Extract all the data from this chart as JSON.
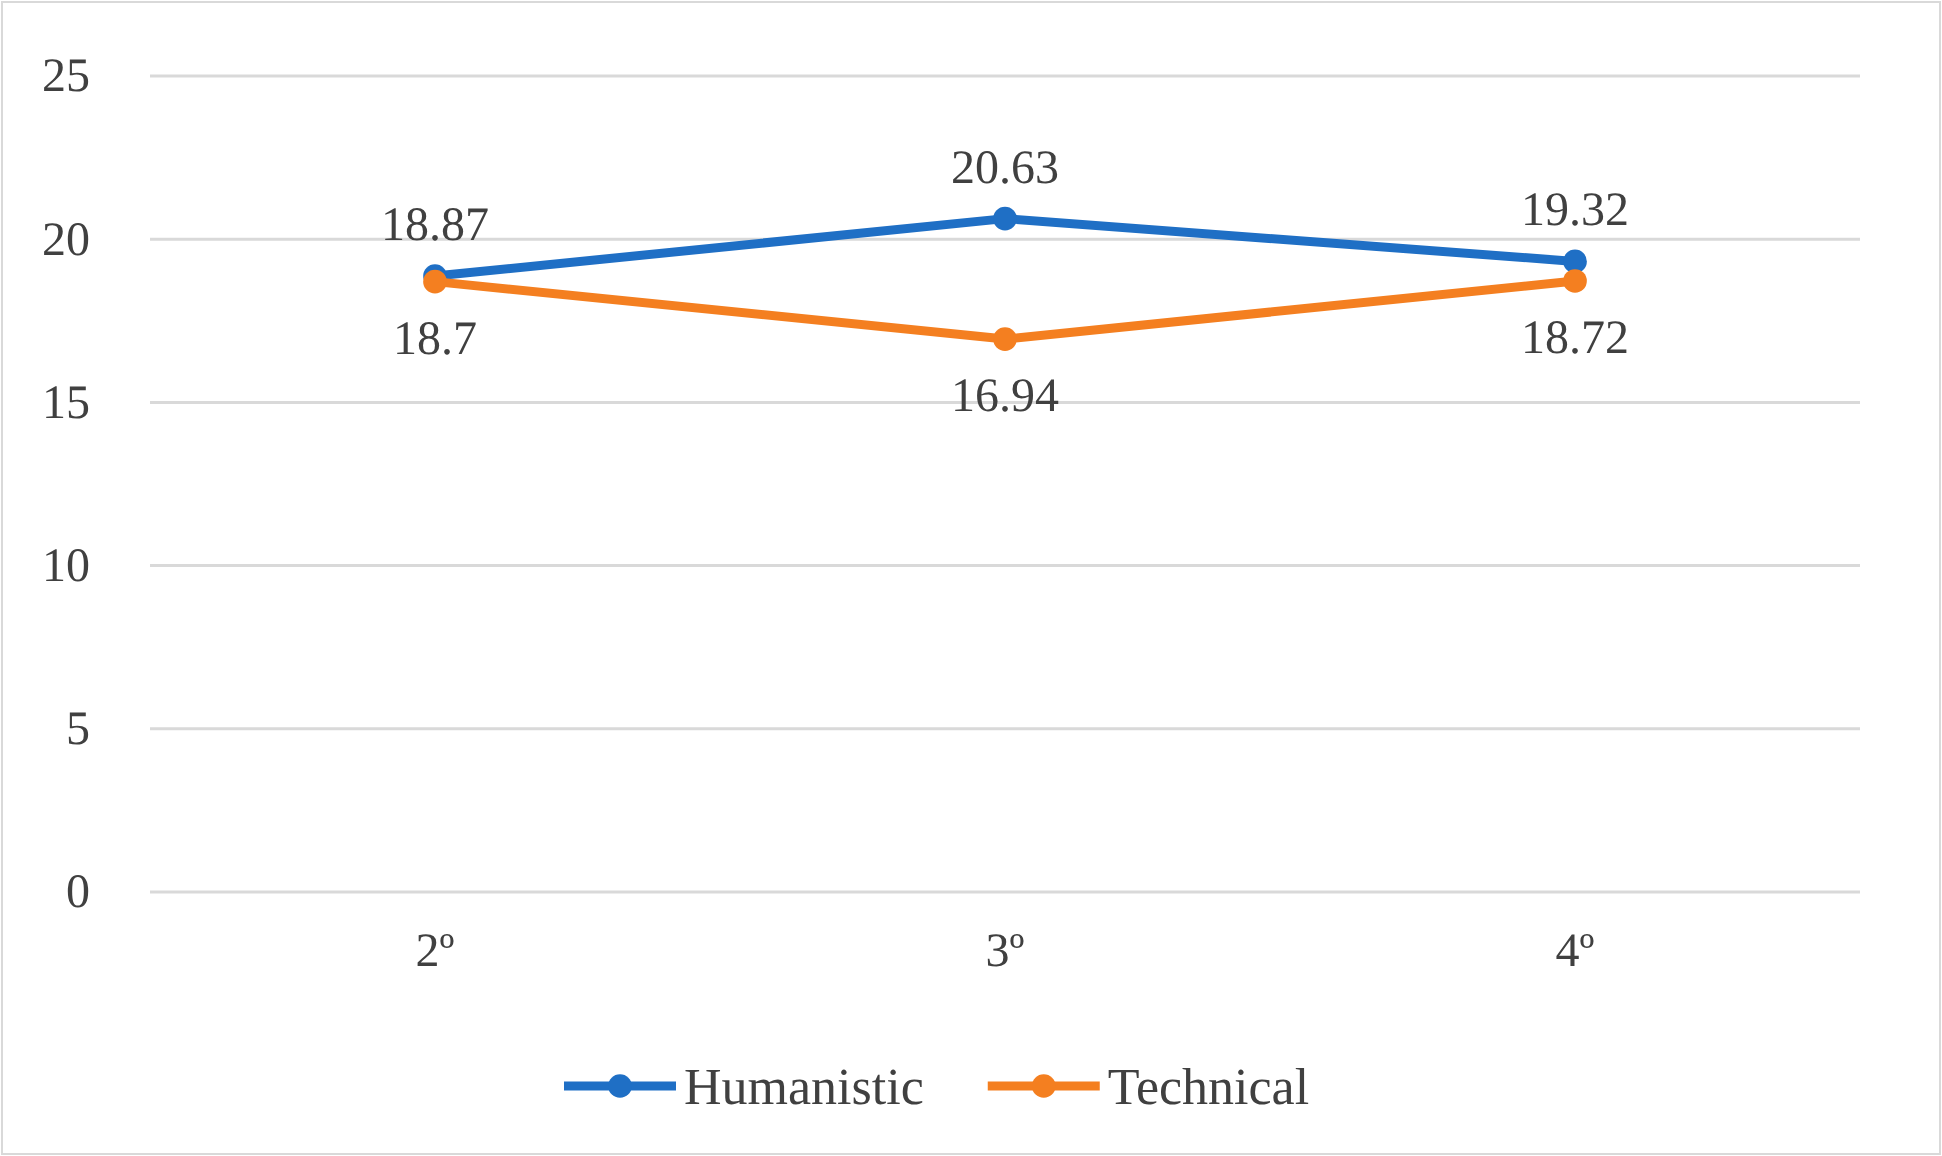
{
  "chart_data": {
    "type": "line",
    "categories": [
      "2º",
      "3º",
      "4º"
    ],
    "series": [
      {
        "name": "Humanistic",
        "color": "#1f6fc5",
        "values": [
          18.87,
          20.63,
          19.32
        ]
      },
      {
        "name": "Technical",
        "color": "#f47f20",
        "values": [
          18.7,
          16.94,
          18.72
        ]
      }
    ],
    "ylim": [
      0,
      25
    ],
    "yticks": [
      0,
      5,
      10,
      15,
      20,
      25
    ],
    "grid": "y",
    "legend": "bottom",
    "marker": "circle",
    "line_style": "solid",
    "data_labels": true
  }
}
